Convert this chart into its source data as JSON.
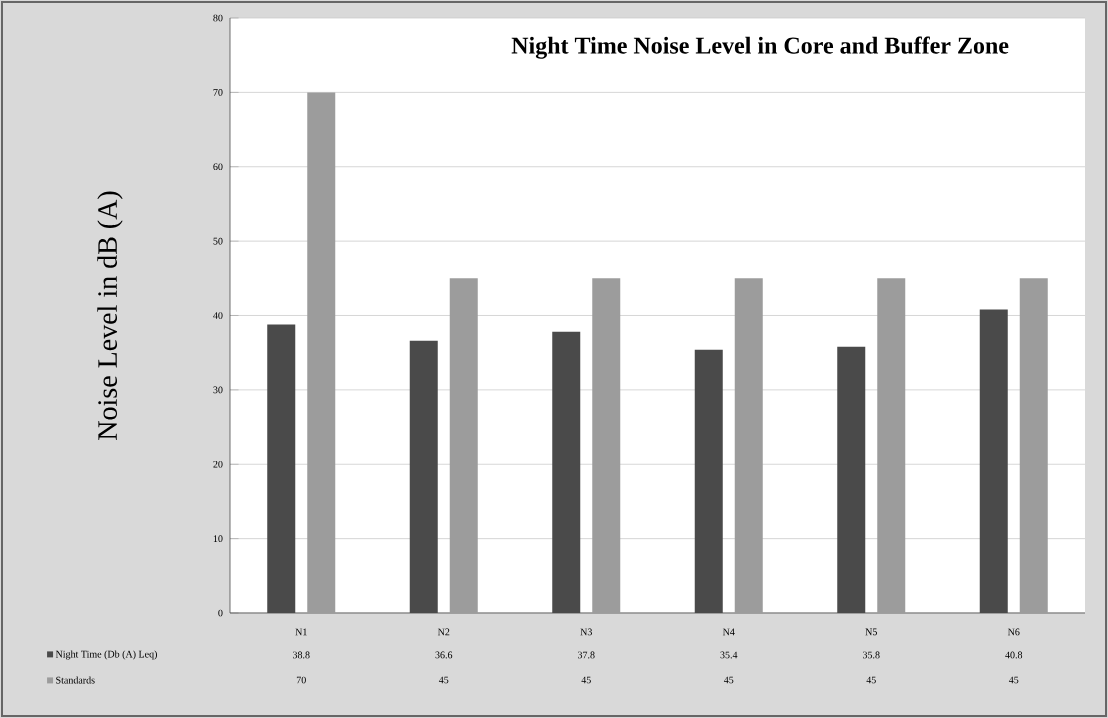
{
  "chart_data": {
    "type": "bar",
    "title": "Night Time Noise Level in Core and Buffer Zone",
    "ylabel": "Noise Level in dB (A)",
    "categories": [
      "N1",
      "N2",
      "N3",
      "N4",
      "N5",
      "N6"
    ],
    "series": [
      {
        "name": "Night Time (Db (A) Leq)",
        "color": "#4a4a4a",
        "values": [
          38.8,
          36.6,
          37.8,
          35.4,
          35.8,
          40.8
        ]
      },
      {
        "name": "Standards",
        "color": "#9c9c9c",
        "values": [
          70,
          45,
          45,
          45,
          45,
          45
        ]
      }
    ],
    "ylim": [
      0,
      80
    ],
    "yticks": [
      0,
      10,
      20,
      30,
      40,
      50,
      60,
      70,
      80
    ],
    "grid": "y",
    "legend": "bottom left",
    "data_labels": true
  }
}
